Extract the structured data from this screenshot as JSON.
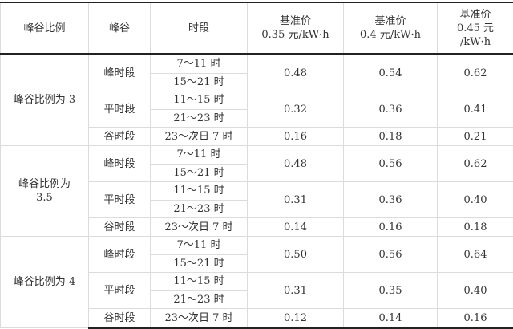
{
  "header": {
    "ratio": "峰谷比例",
    "peak_valley": "峰谷",
    "period": "时段",
    "price_cols": [
      {
        "line1": "基准价",
        "line2": "0.35 元/kW·h"
      },
      {
        "line1": "基准价",
        "line2": "0.4 元/kW·h"
      },
      {
        "line1": "基准价",
        "line2": "0.45 元",
        "line3": "/kW·h"
      }
    ]
  },
  "groups": [
    {
      "label_line1": "峰谷比例为 3",
      "label_line2": "",
      "peak": {
        "name": "峰时段",
        "periods": [
          "7～11 时",
          "15～21 时"
        ],
        "prices": [
          "0.48",
          "0.54",
          "0.62"
        ]
      },
      "flat": {
        "name": "平时段",
        "periods": [
          "11～15 时",
          "21～23 时"
        ],
        "prices": [
          "0.32",
          "0.36",
          "0.41"
        ]
      },
      "valley": {
        "name": "谷时段",
        "periods": [
          "23～次日 7 时"
        ],
        "prices": [
          "0.16",
          "0.18",
          "0.21"
        ]
      }
    },
    {
      "label_line1": "峰谷比例为",
      "label_line2": "3.5",
      "peak": {
        "name": "峰时段",
        "periods": [
          "7～11 时",
          "15～21 时"
        ],
        "prices": [
          "0.48",
          "0.56",
          "0.62"
        ]
      },
      "flat": {
        "name": "平时段",
        "periods": [
          "11～15 时",
          "21～23 时"
        ],
        "prices": [
          "0.31",
          "0.36",
          "0.40"
        ]
      },
      "valley": {
        "name": "谷时段",
        "periods": [
          "23～次日 7 时"
        ],
        "prices": [
          "0.14",
          "0.16",
          "0.18"
        ]
      }
    },
    {
      "label_line1": "峰谷比例为 4",
      "label_line2": "",
      "peak": {
        "name": "峰时段",
        "periods": [
          "7～11 时",
          "15～21 时"
        ],
        "prices": [
          "0.50",
          "0.56",
          "0.64"
        ]
      },
      "flat": {
        "name": "平时段",
        "periods": [
          "11～15 时",
          "21～23 时"
        ],
        "prices": [
          "0.31",
          "0.35",
          "0.40"
        ]
      },
      "valley": {
        "name": "谷时段",
        "periods": [
          "23～次日 7 时"
        ],
        "prices": [
          "0.12",
          "0.14",
          "0.16"
        ]
      }
    }
  ]
}
